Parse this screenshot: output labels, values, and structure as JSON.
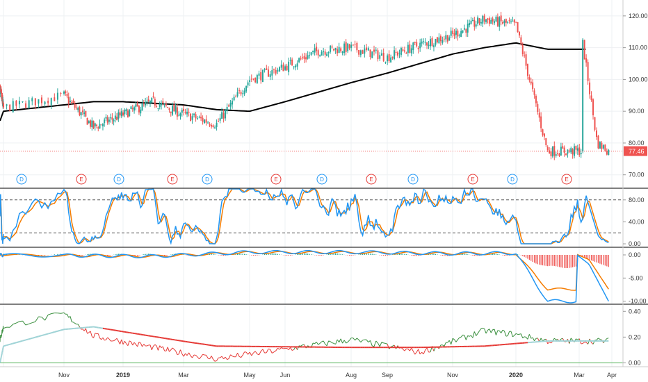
{
  "colors": {
    "background": "#ffffff",
    "grid": "#eef0f3",
    "pane_border": "#333333",
    "up": "#26a69a",
    "down": "#ef5350",
    "sma200": "#000000",
    "stoch_k": "#2196f3",
    "stoch_d": "#f57c00",
    "macd_line": "#2196f3",
    "macd_signal": "#f57c00",
    "rs_above": "#388e3c",
    "rs_below": "#e53935",
    "rs_avg_light": "#9fd3d6",
    "rs_avg_heavy": "#e53935",
    "dividend": "#2196f3",
    "earnings": "#e53935",
    "price_line": "#ef5350",
    "last_price_bg": "#ef5350"
  },
  "price_pane": {
    "y_ticks": [
      "120.00",
      "110.00",
      "100.00",
      "90.00",
      "80.00",
      "70.00"
    ],
    "last_price_label": "77.46",
    "events": [
      "D",
      "E",
      "D",
      "E",
      "D",
      "E",
      "D",
      "E",
      "D",
      "E",
      "D",
      "E"
    ]
  },
  "stoch_pane": {
    "y_ticks": [
      "80.00",
      "40.00",
      "0.00"
    ]
  },
  "macd_pane": {
    "y_ticks": [
      "0.00",
      "-5.00",
      "-10.00"
    ]
  },
  "rs_pane": {
    "y_ticks": [
      "0.40",
      "0.20",
      "0.00"
    ]
  },
  "x_axis": {
    "labels": [
      "Nov",
      "2019",
      "Mar",
      "May",
      "Jun",
      "Aug",
      "Sep",
      "Nov",
      "2020",
      "Mar",
      "Apr"
    ],
    "bold": [
      "2019",
      "2020"
    ]
  },
  "chart_data": [
    {
      "type": "candlestick",
      "pane": "price",
      "ylim": [
        66,
        125
      ],
      "series": [
        {
          "name": "close",
          "x": [
            "2018-10",
            "2018-11",
            "2018-12",
            "2019-01",
            "2019-02",
            "2019-03",
            "2019-04",
            "2019-05",
            "2019-06",
            "2019-07",
            "2019-08",
            "2019-09",
            "2019-10",
            "2019-11",
            "2019-12",
            "2020-01",
            "2020-02",
            "2020-03"
          ],
          "values": [
            97,
            91,
            95,
            85,
            89,
            93,
            89,
            86,
            100,
            104,
            109,
            110,
            107,
            111,
            114,
            119,
            117,
            77.46
          ]
        },
        {
          "name": "200-day average",
          "x": [
            "2018-10",
            "2018-11",
            "2018-12",
            "2019-01",
            "2019-02",
            "2019-03",
            "2019-04",
            "2019-05",
            "2019-06",
            "2019-07",
            "2019-08",
            "2019-09",
            "2019-10",
            "2019-11",
            "2019-12",
            "2020-01",
            "2020-02",
            "2020-03"
          ],
          "values": [
            87,
            90,
            92,
            93,
            93,
            92.5,
            92,
            90.5,
            90,
            93,
            96,
            99,
            102,
            105,
            108,
            110,
            111.5,
            109.5
          ]
        }
      ]
    },
    {
      "type": "line",
      "pane": "stochastic",
      "ylim": [
        -5,
        100
      ],
      "reference_lines": [
        80,
        20
      ],
      "series": [
        {
          "name": "%K",
          "range": [
            0,
            100
          ]
        },
        {
          "name": "%D",
          "range": [
            0,
            100
          ]
        }
      ]
    },
    {
      "type": "line",
      "pane": "macd",
      "ylim": [
        -10.5,
        1.5
      ],
      "series": [
        {
          "name": "macd",
          "x": [
            "2018-10",
            "2019-03",
            "2019-06",
            "2019-09",
            "2019-12",
            "2020-02",
            "2020-03"
          ],
          "values": [
            0.0,
            -0.3,
            0.6,
            0.6,
            0.3,
            0.4,
            -10.0
          ]
        },
        {
          "name": "signal",
          "x": [
            "2018-10",
            "2019-03",
            "2019-06",
            "2019-09",
            "2019-12",
            "2020-02",
            "2020-03"
          ],
          "values": [
            0.0,
            -0.3,
            0.5,
            0.5,
            0.3,
            0.3,
            -7.4
          ]
        }
      ]
    },
    {
      "type": "line",
      "pane": "relative",
      "ylim": [
        -0.03,
        0.45
      ],
      "series": [
        {
          "name": "ratio",
          "x": [
            "2018-10",
            "2018-12",
            "2019-01",
            "2019-05",
            "2019-09",
            "2019-11",
            "2020-01",
            "2020-02",
            "2020-03"
          ],
          "values": [
            0.18,
            0.38,
            0.21,
            0.03,
            0.18,
            0.08,
            0.25,
            0.22,
            0.17
          ]
        },
        {
          "name": "average",
          "x": [
            "2018-10",
            "2018-12",
            "2019-01",
            "2019-05",
            "2019-09",
            "2019-11",
            "2020-01",
            "2020-03"
          ],
          "values": [
            0.0,
            0.26,
            0.28,
            0.13,
            0.12,
            0.12,
            0.13,
            0.17
          ]
        }
      ]
    }
  ]
}
